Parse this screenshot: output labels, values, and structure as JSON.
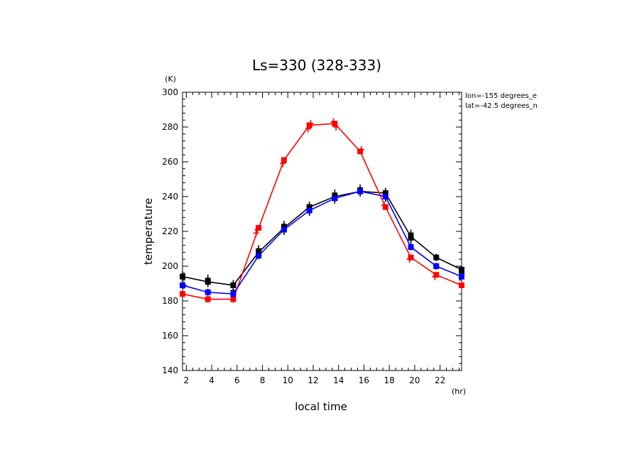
{
  "chart_data": {
    "type": "line",
    "title": "Ls=330 (328-333)",
    "xlabel": "local time",
    "ylabel": "temperature",
    "x_unit": "(hr)",
    "y_unit": "(K)",
    "annotations": [
      "lon=-155 degrees_e",
      "lat=-42.5 degrees_n"
    ],
    "xlim": [
      1.7,
      23.7
    ],
    "ylim": [
      140,
      300
    ],
    "x_ticks": [
      2,
      4,
      6,
      8,
      10,
      12,
      14,
      16,
      18,
      20,
      22
    ],
    "y_ticks": [
      140,
      160,
      180,
      200,
      220,
      240,
      260,
      280,
      300
    ],
    "grid": false,
    "series": [
      {
        "color": "#ff0000",
        "x": [
          1.7,
          3.7,
          5.7,
          7.7,
          9.7,
          11.7,
          13.7,
          15.7,
          17.7,
          19.7,
          21.7,
          23.7
        ],
        "y": [
          184,
          181,
          181,
          222,
          261,
          281,
          282,
          266,
          234,
          205,
          195,
          189
        ],
        "obs": [
          [
            7.5,
            219
          ],
          [
            7.6,
            221
          ],
          [
            9.6,
            259
          ],
          [
            11.6,
            279
          ],
          [
            11.8,
            282
          ],
          [
            13.8,
            280
          ],
          [
            13.6,
            283
          ],
          [
            15.8,
            267
          ],
          [
            17.6,
            235
          ],
          [
            19.6,
            204
          ],
          [
            21.6,
            194
          ],
          [
            3.7,
            181
          ],
          [
            5.7,
            181
          ],
          [
            1.7,
            184
          ]
        ]
      },
      {
        "color": "#0000ff",
        "x": [
          1.7,
          3.7,
          5.7,
          7.7,
          9.7,
          11.7,
          13.7,
          15.7,
          17.7,
          19.7,
          21.7,
          23.7
        ],
        "y": [
          189,
          185,
          184,
          206,
          221,
          232,
          239,
          243,
          240,
          211,
          200,
          194
        ],
        "obs": [
          [
            1.8,
            189
          ],
          [
            3.7,
            185
          ],
          [
            5.7,
            184
          ],
          [
            19.7,
            211
          ],
          [
            21.7,
            200
          ],
          [
            23.7,
            194
          ]
        ]
      },
      {
        "color": "#000000",
        "x": [
          1.7,
          3.7,
          5.7,
          7.7,
          9.7,
          11.7,
          13.7,
          15.7,
          17.7,
          19.7,
          21.7,
          23.7
        ],
        "y": [
          194,
          191,
          189,
          208,
          222,
          234,
          240,
          243,
          242,
          217,
          205,
          198
        ],
        "obs": [
          [
            1.7,
            195
          ],
          [
            1.7,
            193
          ],
          [
            3.7,
            193
          ],
          [
            3.7,
            190
          ],
          [
            5.7,
            190
          ],
          [
            5.7,
            186
          ],
          [
            7.7,
            210
          ],
          [
            7.7,
            206
          ],
          [
            9.7,
            224
          ],
          [
            9.7,
            220
          ],
          [
            11.7,
            235
          ],
          [
            11.7,
            231
          ],
          [
            13.7,
            242
          ],
          [
            13.7,
            238
          ],
          [
            15.7,
            245
          ],
          [
            15.7,
            242
          ],
          [
            17.7,
            243
          ],
          [
            17.7,
            239
          ],
          [
            19.7,
            219
          ],
          [
            19.7,
            215
          ],
          [
            21.7,
            205
          ],
          [
            23.7,
            198
          ],
          [
            23.7,
            196
          ]
        ]
      }
    ]
  }
}
